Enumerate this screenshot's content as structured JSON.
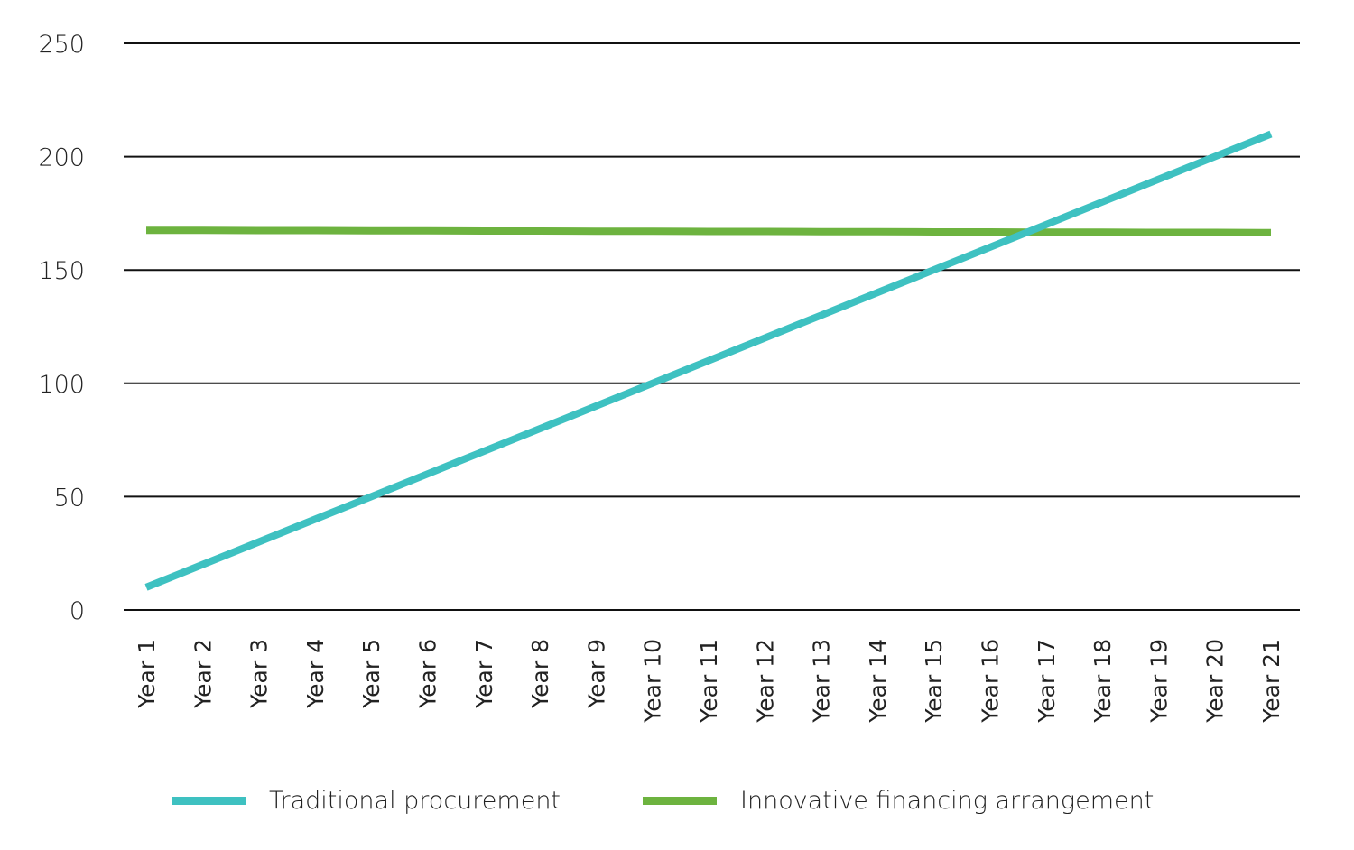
{
  "chart_data": {
    "type": "line",
    "title": "",
    "xlabel": "",
    "ylabel": "",
    "categories": [
      "Year 1",
      "Year 2",
      "Year 3",
      "Year 4",
      "Year 5",
      "Year 6",
      "Year 7",
      "Year 8",
      "Year 9",
      "Year 10",
      "Year 11",
      "Year 12",
      "Year 13",
      "Year 14",
      "Year 15",
      "Year 16",
      "Year 17",
      "Year 18",
      "Year 19",
      "Year 20",
      "Year 21"
    ],
    "ylim": [
      0,
      250
    ],
    "yticks": [
      0,
      50,
      100,
      150,
      200,
      250
    ],
    "grid": "horizontal",
    "legend_position": "bottom",
    "series": [
      {
        "name": "Traditional procurement",
        "color": "#3ec1c1",
        "values": [
          10,
          20,
          30,
          40,
          50,
          60,
          70,
          80,
          90,
          100,
          110,
          120,
          130,
          140,
          150,
          160,
          170,
          180,
          190,
          200,
          210
        ]
      },
      {
        "name": "Innovative financing arrangement",
        "color": "#6db33f",
        "values": [
          167.5,
          167.5,
          167.4,
          167.4,
          167.3,
          167.3,
          167.2,
          167.2,
          167.1,
          167.1,
          167,
          167,
          166.9,
          166.9,
          166.8,
          166.8,
          166.7,
          166.7,
          166.6,
          166.6,
          166.5
        ]
      }
    ]
  }
}
